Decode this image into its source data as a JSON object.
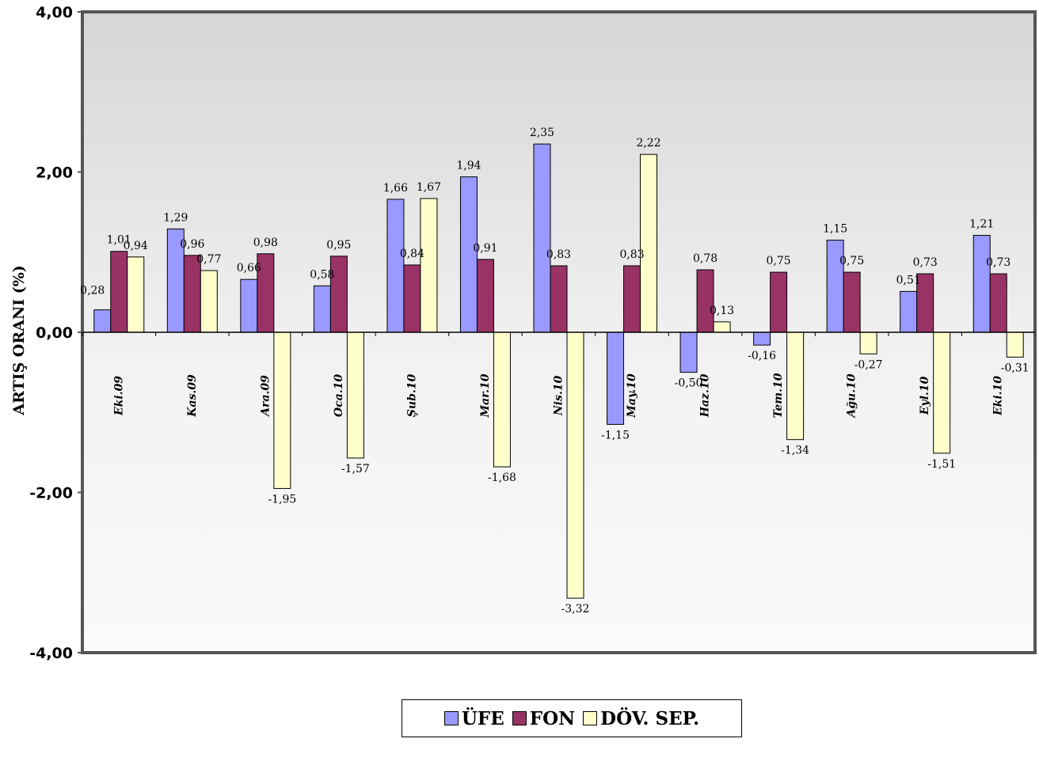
{
  "chart_data": {
    "type": "bar",
    "ylabel": "ARTIŞ ORANI (%)",
    "ylim": [
      -4,
      4
    ],
    "yticks": [
      "4,00",
      "2,00",
      "0,00",
      "-2,00",
      "-4,00"
    ],
    "ytick_values": [
      4,
      2,
      0,
      -2,
      -4
    ],
    "categories": [
      "Eki.09",
      "Kas.09",
      "Ara.09",
      "Oca.10",
      "Şub.10",
      "Mar.10",
      "Nis.10",
      "May.10",
      "Haz.10",
      "Tem.10",
      "Ağu.10",
      "Eyl.10",
      "Eki.10"
    ],
    "series": [
      {
        "name": "ÜFE",
        "color": "#9999ff",
        "values": [
          0.28,
          1.29,
          0.66,
          0.58,
          1.66,
          1.94,
          2.35,
          -1.15,
          -0.5,
          -0.16,
          1.15,
          0.51,
          1.21
        ],
        "labels": [
          "0,28",
          "1,29",
          "0,66",
          "0,58",
          "1,66",
          "1,94",
          "2,35",
          "-1,15",
          "-0,50",
          "-0,16",
          "1,15",
          "0,51",
          "1,21"
        ]
      },
      {
        "name": "FON",
        "color": "#993366",
        "values": [
          1.01,
          0.96,
          0.98,
          0.95,
          0.84,
          0.91,
          0.83,
          0.83,
          0.78,
          0.75,
          0.75,
          0.73,
          0.73
        ],
        "labels": [
          "1,01",
          "0,96",
          "0,98",
          "0,95",
          "0,84",
          "0,91",
          "0,83",
          "0,83",
          "0,78",
          "0,75",
          "0,75",
          "0,73",
          "0,73"
        ]
      },
      {
        "name": "DÖV. SEP.",
        "color": "#ffffcc",
        "values": [
          0.94,
          0.77,
          -1.95,
          -1.57,
          1.67,
          -1.68,
          -3.32,
          2.22,
          0.13,
          -1.34,
          -0.27,
          -1.51,
          -0.31
        ],
        "labels": [
          "0,94",
          "0,77",
          "-1,95",
          "-1,57",
          "1,67",
          "-1,68",
          "-3,32",
          "2,22",
          "0,13",
          "-1,34",
          "-0,27",
          "-1,51",
          "-0,31"
        ]
      }
    ],
    "grid": false,
    "legend": "bottom"
  }
}
